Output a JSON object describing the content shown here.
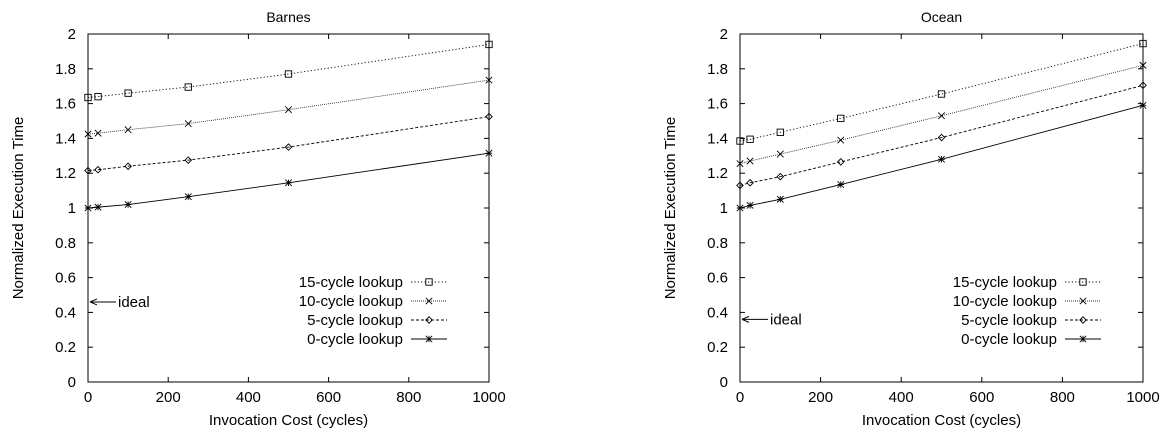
{
  "chart_data": [
    {
      "type": "line",
      "title": "Barnes",
      "xlabel": "Invocation Cost (cycles)",
      "ylabel": "Normalized Execution Time",
      "xlim": [
        0,
        1000
      ],
      "ylim": [
        0,
        2
      ],
      "xticks": [
        "0",
        "200",
        "400",
        "600",
        "800",
        "1000"
      ],
      "yticks": [
        "0",
        "0.2",
        "0.4",
        "0.6",
        "0.8",
        "1",
        "1.2",
        "1.4",
        "1.6",
        "1.8",
        "2"
      ],
      "x": [
        0,
        25,
        100,
        250,
        500,
        1000
      ],
      "series": [
        {
          "name": "15-cycle lookup",
          "marker": "square",
          "dash": "dotted",
          "values": [
            1.635,
            1.64,
            1.66,
            1.695,
            1.77,
            1.94
          ]
        },
        {
          "name": "10-cycle lookup",
          "marker": "x",
          "dash": "fine-dotted",
          "values": [
            1.425,
            1.43,
            1.45,
            1.485,
            1.565,
            1.735
          ]
        },
        {
          "name": "5-cycle lookup",
          "marker": "diamond",
          "dash": "dashed",
          "values": [
            1.215,
            1.22,
            1.24,
            1.275,
            1.35,
            1.525
          ]
        },
        {
          "name": "0-cycle lookup",
          "marker": "star",
          "dash": "solid",
          "values": [
            1.0,
            1.005,
            1.02,
            1.065,
            1.145,
            1.315
          ]
        }
      ],
      "annotation": {
        "text": "ideal",
        "x": 0,
        "y": 0.46
      },
      "legend_position": "bottom-right",
      "grid": false
    },
    {
      "type": "line",
      "title": "Ocean",
      "xlabel": "Invocation Cost (cycles)",
      "ylabel": "Normalized Execution Time",
      "xlim": [
        0,
        1000
      ],
      "ylim": [
        0,
        2
      ],
      "xticks": [
        "0",
        "200",
        "400",
        "600",
        "800",
        "1000"
      ],
      "yticks": [
        "0",
        "0.2",
        "0.4",
        "0.6",
        "0.8",
        "1",
        "1.2",
        "1.4",
        "1.6",
        "1.8",
        "2"
      ],
      "x": [
        0,
        25,
        100,
        250,
        500,
        1000
      ],
      "series": [
        {
          "name": "15-cycle lookup",
          "marker": "square",
          "dash": "dotted",
          "values": [
            1.385,
            1.395,
            1.435,
            1.515,
            1.655,
            1.945
          ]
        },
        {
          "name": "10-cycle lookup",
          "marker": "x",
          "dash": "fine-dotted",
          "values": [
            1.255,
            1.27,
            1.31,
            1.39,
            1.53,
            1.82
          ]
        },
        {
          "name": "5-cycle lookup",
          "marker": "diamond",
          "dash": "dashed",
          "values": [
            1.13,
            1.145,
            1.18,
            1.265,
            1.405,
            1.705
          ]
        },
        {
          "name": "0-cycle lookup",
          "marker": "star",
          "dash": "solid",
          "values": [
            1.0,
            1.015,
            1.05,
            1.135,
            1.28,
            1.59
          ]
        }
      ],
      "annotation": {
        "text": "ideal",
        "x": 0,
        "y": 0.36
      },
      "legend_position": "bottom-right",
      "grid": false
    }
  ]
}
